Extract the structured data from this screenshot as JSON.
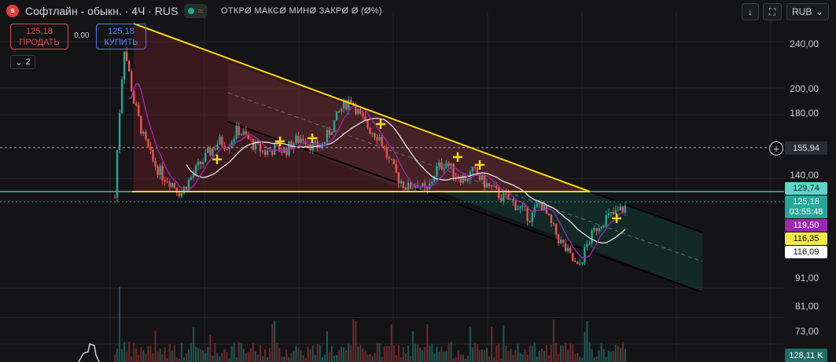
{
  "header": {
    "logo_text": "s",
    "title": "Софтлайн - обыкн. · 4Ч · RUS",
    "wave_icon": "≈",
    "ohlc_text": "ОТКРØ МАКСØ МИНØ ЗАКРØ Ø (Ø%)"
  },
  "toolbar": {
    "currency_label": "RUB",
    "currency_arrow": "⌄",
    "download_icon": "↓",
    "fullscreen_icon": "⛶"
  },
  "trade": {
    "sell_price": "125,18",
    "sell_label": "ПРОДАТЬ",
    "spread": "0,00",
    "buy_price": "125,18",
    "buy_label": "КУПИТЬ"
  },
  "indicators": {
    "collapse_count": "2",
    "collapse_icon": "⌄"
  },
  "price_axis": {
    "labels": [
      "240,00",
      "200,00",
      "180,00",
      "140,00",
      "91,00",
      "81,00",
      "73,00"
    ]
  },
  "badges": {
    "crosshair_price": "155,94",
    "level_price": "129,74",
    "last_price": "125,18",
    "countdown": "03:55:48",
    "ma_purple": "119,50",
    "ma_yellow": "116,35",
    "ma_white": "116,09",
    "volume": "128,11 K"
  },
  "colors": {
    "background": "#141416",
    "bullish": "#26a69a",
    "bearish": "#ef5350",
    "trendline": "#f5d90a",
    "ma_purple": "#9c27b0",
    "ma_white": "#e6e0e0",
    "level_line": "#5fd5c9"
  },
  "chart_data": {
    "type": "candlestick",
    "title": "Софтлайн - обыкн. · 4Ч · RUS",
    "yscale": "log",
    "ylim": [
      68,
      270
    ],
    "yticks": [
      240,
      200,
      180,
      140,
      91,
      81,
      73
    ],
    "levels": {
      "horizontal": 129.74,
      "crosshair": 155.94,
      "last": 125.18
    },
    "close_path": [
      130,
      235,
      190,
      165,
      150,
      142,
      138,
      132,
      140,
      148,
      155,
      162,
      160,
      170,
      164,
      158,
      155,
      158,
      156,
      162,
      165,
      158,
      160,
      172,
      185,
      192,
      178,
      170,
      165,
      150,
      140,
      135,
      138,
      132,
      145,
      150,
      142,
      140,
      144,
      138,
      134,
      130,
      128,
      124,
      120,
      128,
      118,
      110,
      104,
      98,
      108,
      116,
      120,
      122,
      125
    ],
    "ma_purple_last": 119.5,
    "ma_yellow_last": 116.35,
    "ma_white_last": 116.09,
    "volume_last": "128,11 K"
  }
}
